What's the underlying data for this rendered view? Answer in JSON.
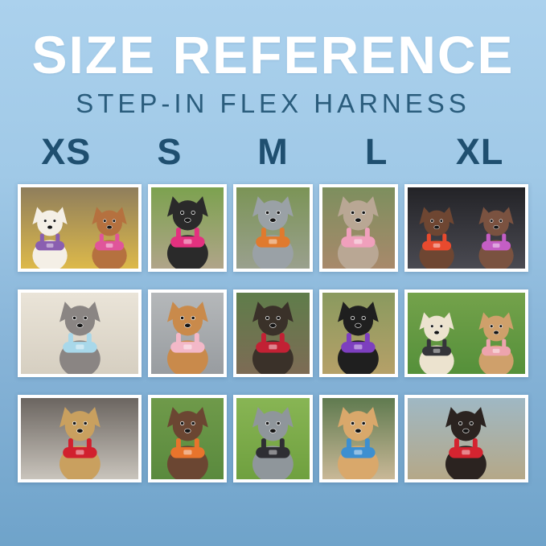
{
  "header": {
    "title": "SIZE REFERENCE",
    "subtitle": "STEP-IN FLEX HARNESS"
  },
  "sizes": [
    "XS",
    "S",
    "M",
    "L",
    "XL"
  ],
  "colors": {
    "background_top": "#abd1ed",
    "background_bottom": "#6fa3ca",
    "title_text": "#ffffff",
    "subtitle_text": "#2a5c7c",
    "size_label_text": "#1f4f70",
    "tile_border": "#ffffff"
  },
  "grid": {
    "rows": 3,
    "columns": 5,
    "photos": [
      {
        "size": "XS",
        "row": 1,
        "description": "White bichon and apricot poodle in purple and pink harnesses on a colorful blanket",
        "scene_top": "#8f7e5c",
        "scene_bottom": "#ddb94a",
        "dog_color": "#f4efe6",
        "harness_color": "#8a5fb0",
        "dog2_color": "#b5713f",
        "harness2_color": "#e0559a"
      },
      {
        "size": "S",
        "row": 1,
        "description": "Black dog in magenta harness standing on a rock among green foliage",
        "scene_top": "#7ca24f",
        "scene_bottom": "#b0a489",
        "dog_color": "#2a2a2a",
        "harness_color": "#e3317f"
      },
      {
        "size": "M",
        "row": 1,
        "description": "Blue merle dog in orange step-in harness with orange leash outdoors",
        "scene_top": "#7b9456",
        "scene_bottom": "#9aa08e",
        "dog_color": "#9aa1a6",
        "harness_color": "#e07a2e"
      },
      {
        "size": "L",
        "row": 1,
        "description": "Brindle whippet in pink harness sitting in a park on bare dirt",
        "scene_top": "#7d8f5e",
        "scene_bottom": "#a8896b",
        "dog_color": "#b9a794",
        "harness_color": "#f0a0bc"
      },
      {
        "size": "XL",
        "row": 1,
        "description": "Two German shorthaired pointers in red and orchid harnesses in a dark car trunk",
        "scene_top": "#232327",
        "scene_bottom": "#4a4a52",
        "dog_color": "#6e4632",
        "harness_color": "#e84a2e",
        "dog2_color": "#7a5240",
        "harness2_color": "#c45ec4"
      },
      {
        "size": "XS",
        "row": 2,
        "description": "Grey shaggy dog in light-blue harness lying on cream bedding",
        "scene_top": "#eae4d8",
        "scene_bottom": "#d6cfc1",
        "dog_color": "#8a8583",
        "harness_color": "#a8d8ea"
      },
      {
        "size": "S",
        "row": 2,
        "description": "Golden retriever puppy in pink harness sitting on asphalt",
        "scene_top": "#b5b8ba",
        "scene_bottom": "#989ca0",
        "dog_color": "#c98a4b",
        "harness_color": "#f3b8c8"
      },
      {
        "size": "M",
        "row": 2,
        "description": "Black-and-tan dog in red harness beside a park bench",
        "scene_top": "#5f7d4a",
        "scene_bottom": "#7d6b55",
        "dog_color": "#3a3129",
        "harness_color": "#c22134"
      },
      {
        "size": "L",
        "row": 2,
        "description": "Black lab puppy in purple harness on autumn grass with orange leaves",
        "scene_top": "#8a9a5f",
        "scene_bottom": "#b5a068",
        "dog_color": "#1f1f1f",
        "harness_color": "#7d3fbf"
      },
      {
        "size": "XL",
        "row": 2,
        "description": "Cream doodle in black harness and fawn French bulldog in pink harness on green grass",
        "scene_top": "#74a24b",
        "scene_bottom": "#55903a",
        "dog_color": "#ece3cf",
        "harness_color": "#35353a",
        "dog2_color": "#cfa06b",
        "harness2_color": "#eda4ad"
      },
      {
        "size": "XS",
        "row": 3,
        "description": "Tan yorkie mix in red harness sitting on a grey shag rug",
        "scene_top": "#6b6560",
        "scene_bottom": "#c9c4bc",
        "dog_color": "#c9a05f",
        "harness_color": "#d1202e"
      },
      {
        "size": "S",
        "row": 3,
        "description": "Brown pointer puppy in orange harness lying in grass",
        "scene_top": "#6f9a4a",
        "scene_bottom": "#5a8a3e",
        "dog_color": "#6b4632",
        "harness_color": "#e8742c"
      },
      {
        "size": "M",
        "row": 3,
        "description": "Merle border collie in black harness on green grass",
        "scene_top": "#88b554",
        "scene_bottom": "#6fa03f",
        "dog_color": "#8f969b",
        "harness_color": "#2e2e33"
      },
      {
        "size": "L",
        "row": 3,
        "description": "Apricot doodle in blue harness sitting on a rock with teal leash",
        "scene_top": "#5f7a4f",
        "scene_bottom": "#c9b897",
        "dog_color": "#d9a86b",
        "harness_color": "#3d8fd0"
      },
      {
        "size": "XL",
        "row": 3,
        "description": "Black-and-tan pinscher in red harness with red leash and mountain vista behind",
        "scene_top": "#9fb8c4",
        "scene_bottom": "#b5a888",
        "dog_color": "#2b2320",
        "harness_color": "#d42430"
      }
    ]
  }
}
